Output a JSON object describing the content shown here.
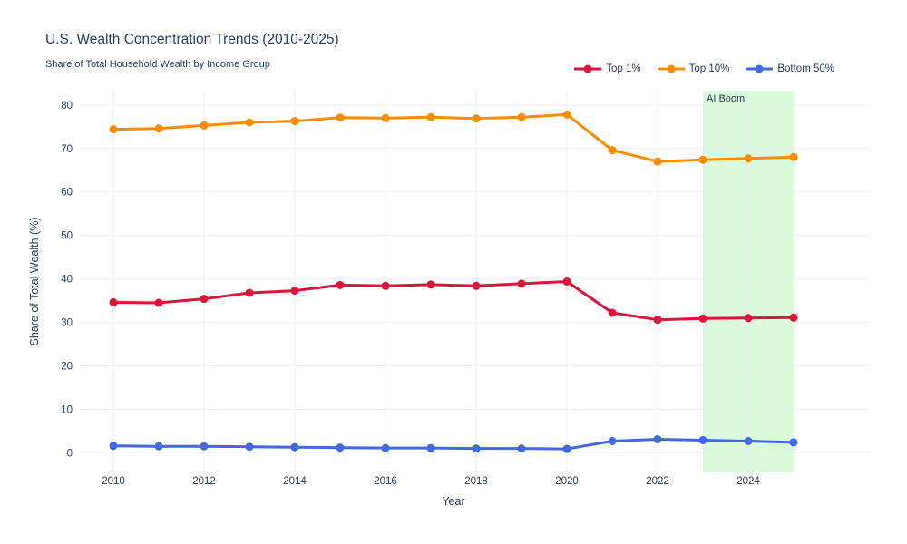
{
  "chart_data": {
    "type": "line",
    "title": "U.S. Wealth Concentration Trends (2010-2025)",
    "subtitle": "Share of Total Household Wealth by Income Group",
    "xlabel": "Year",
    "ylabel": "Share of Total Wealth (%)",
    "x": [
      2010,
      2011,
      2012,
      2013,
      2014,
      2015,
      2016,
      2017,
      2018,
      2019,
      2020,
      2021,
      2022,
      2023,
      2024,
      2025
    ],
    "series": [
      {
        "name": "Top 1%",
        "color": "#DC143C",
        "values": [
          34.6,
          34.5,
          35.4,
          36.8,
          37.3,
          38.6,
          38.4,
          38.7,
          38.4,
          38.9,
          39.4,
          32.2,
          30.6,
          30.9,
          31.0,
          31.1
        ]
      },
      {
        "name": "Top 10%",
        "color": "#FF8C00",
        "values": [
          74.4,
          74.6,
          75.3,
          76.0,
          76.3,
          77.1,
          77.0,
          77.2,
          76.9,
          77.2,
          77.8,
          69.6,
          67.0,
          67.4,
          67.7,
          68.0
        ]
      },
      {
        "name": "Bottom 50%",
        "color": "#4169E1",
        "values": [
          1.6,
          1.5,
          1.5,
          1.4,
          1.3,
          1.2,
          1.1,
          1.1,
          1.0,
          1.0,
          0.9,
          2.7,
          3.1,
          2.9,
          2.7,
          2.4
        ]
      }
    ],
    "x_ticks": [
      2010,
      2012,
      2014,
      2016,
      2018,
      2020,
      2022,
      2024
    ],
    "y_ticks": [
      0,
      10,
      20,
      30,
      40,
      50,
      60,
      70,
      80
    ],
    "x_range": [
      2009.26,
      2026.68
    ],
    "y_range": [
      -4.5,
      83.3
    ],
    "grid": true,
    "legend_position": "top-right",
    "annotations": [
      {
        "label": "AI Boom",
        "x0": 2023,
        "x1": 2025,
        "fill": "rgba(144,238,144,0.32)"
      }
    ],
    "colors": {
      "text": "#2a3f5f",
      "grid": "#ebeff7",
      "background": "#ffffff"
    }
  }
}
